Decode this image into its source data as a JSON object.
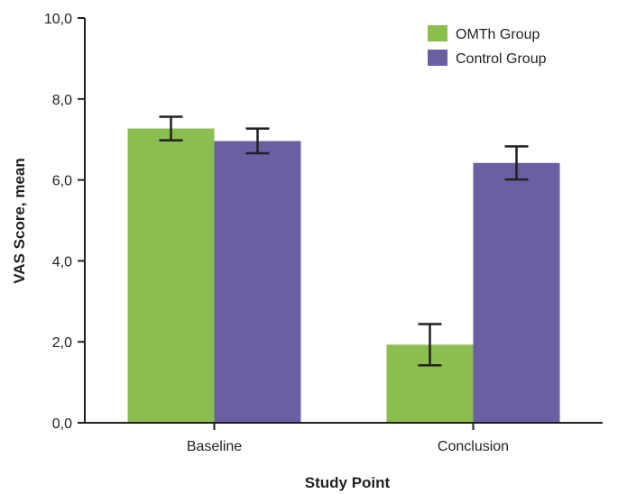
{
  "chart_data": {
    "type": "bar",
    "title": "",
    "xlabel": "Study Point",
    "ylabel": "VAS Score, mean",
    "categories": [
      "Baseline",
      "Conclusion"
    ],
    "series": [
      {
        "name": "OMTh Group",
        "color": "#8cbd4f",
        "values": [
          7.27,
          1.93
        ],
        "error_low": [
          6.98,
          1.42
        ],
        "error_high": [
          7.56,
          2.44
        ]
      },
      {
        "name": "Control Group",
        "color": "#6a5fa3",
        "values": [
          6.96,
          6.42
        ],
        "error_low": [
          6.66,
          6.01
        ],
        "error_high": [
          7.27,
          6.83
        ]
      }
    ],
    "ylim": [
      0,
      10
    ],
    "yticks": [
      "0,0",
      "2,0",
      "4,0",
      "6,0",
      "8,0",
      "10,0"
    ],
    "ytick_values": [
      0,
      2,
      4,
      6,
      8,
      10
    ],
    "grid": false,
    "legend_position": "top-right"
  }
}
